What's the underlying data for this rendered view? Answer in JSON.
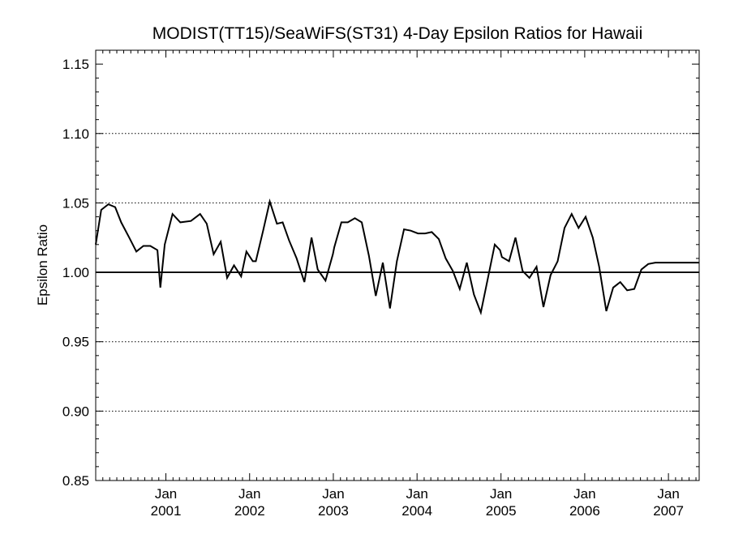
{
  "chart_data": {
    "type": "line",
    "title": "MODIST(TT15)/SeaWiFS(ST31) 4-Day Epsilon Ratios for Hawaii",
    "ylabel": "Epsilon Ratio",
    "xlabel": "",
    "ylim": [
      0.85,
      1.16
    ],
    "xlim": [
      "2000-03-01",
      "2007-05-15"
    ],
    "yticks": [
      "0.85",
      "0.90",
      "0.95",
      "1.00",
      "1.05",
      "1.10",
      "1.15"
    ],
    "ytick_values": [
      0.85,
      0.9,
      0.95,
      1.0,
      1.05,
      1.1,
      1.15
    ],
    "xticks": [
      {
        "date": "2001-01-01",
        "month": "Jan",
        "year": "2001"
      },
      {
        "date": "2002-01-01",
        "month": "Jan",
        "year": "2002"
      },
      {
        "date": "2003-01-01",
        "month": "Jan",
        "year": "2003"
      },
      {
        "date": "2004-01-01",
        "month": "Jan",
        "year": "2004"
      },
      {
        "date": "2005-01-01",
        "month": "Jan",
        "year": "2005"
      },
      {
        "date": "2006-01-01",
        "month": "Jan",
        "year": "2006"
      },
      {
        "date": "2007-01-01",
        "month": "Jan",
        "year": "2007"
      }
    ],
    "reference_line": 1.0,
    "dotted_gridlines": [
      0.9,
      0.95,
      1.05,
      1.1
    ],
    "grid": "dotted horizontal",
    "series": [
      {
        "line_color": "#000000",
        "x": [
          "2000-03-01",
          "2000-03-25",
          "2000-04-25",
          "2000-05-25",
          "2000-06-20",
          "2000-07-25",
          "2000-08-25",
          "2000-09-25",
          "2000-10-25",
          "2000-11-25",
          "2000-12-08",
          "2000-12-27",
          "2001-01-30",
          "2001-03-05",
          "2001-04-20",
          "2001-05-30",
          "2001-06-28",
          "2001-07-28",
          "2001-08-28",
          "2001-09-25",
          "2001-10-25",
          "2001-11-25",
          "2001-12-18",
          "2002-01-15",
          "2002-01-28",
          "2002-03-01",
          "2002-03-30",
          "2002-04-30",
          "2002-05-25",
          "2002-06-22",
          "2002-07-25",
          "2002-08-28",
          "2002-09-28",
          "2002-10-25",
          "2002-11-28",
          "2002-12-30",
          "2003-01-05",
          "2003-02-05",
          "2003-03-05",
          "2003-04-05",
          "2003-05-05",
          "2003-06-05",
          "2003-07-05",
          "2003-08-05",
          "2003-09-05",
          "2003-10-05",
          "2003-11-05",
          "2003-12-05",
          "2004-01-05",
          "2004-02-05",
          "2004-03-05",
          "2004-04-05",
          "2004-05-05",
          "2004-06-05",
          "2004-07-05",
          "2004-08-05",
          "2004-09-05",
          "2004-10-05",
          "2004-11-05",
          "2004-12-05",
          "2004-12-28",
          "2005-01-05",
          "2005-02-05",
          "2005-03-05",
          "2005-04-05",
          "2005-05-05",
          "2005-06-05",
          "2005-07-05",
          "2005-08-05",
          "2005-09-05",
          "2005-10-05",
          "2005-11-05",
          "2005-12-05",
          "2006-01-05",
          "2006-02-05",
          "2006-03-05",
          "2006-04-05",
          "2006-05-05",
          "2006-06-05",
          "2006-07-05",
          "2006-08-05",
          "2006-09-05",
          "2006-10-05",
          "2006-11-05",
          "2006-12-05",
          "2007-01-05",
          "2007-02-05",
          "2007-03-05",
          "2007-04-05",
          "2007-05-15"
        ],
        "y": [
          1.02,
          1.045,
          1.049,
          1.047,
          1.036,
          1.025,
          1.015,
          1.019,
          1.019,
          1.016,
          0.989,
          1.02,
          1.042,
          1.036,
          1.037,
          1.042,
          1.035,
          1.013,
          1.022,
          0.996,
          1.005,
          0.997,
          1.015,
          1.008,
          1.008,
          1.03,
          1.051,
          1.035,
          1.036,
          1.023,
          1.01,
          0.993,
          1.025,
          1.002,
          0.994,
          1.013,
          1.018,
          1.036,
          1.036,
          1.039,
          1.036,
          1.012,
          0.983,
          1.007,
          0.974,
          1.008,
          1.031,
          1.03,
          1.028,
          1.028,
          1.029,
          1.024,
          1.01,
          1.001,
          0.988,
          1.007,
          0.984,
          0.971,
          0.996,
          1.02,
          1.016,
          1.011,
          1.008,
          1.025,
          1.001,
          0.996,
          1.004,
          0.975,
          0.998,
          1.008,
          1.032,
          1.042,
          1.032,
          1.04,
          1.025,
          1.004,
          0.972,
          0.989,
          0.993,
          0.987,
          0.988,
          1.002,
          1.006,
          1.007,
          1.007,
          1.007,
          1.007,
          1.007,
          1.007,
          1.007
        ]
      }
    ]
  }
}
